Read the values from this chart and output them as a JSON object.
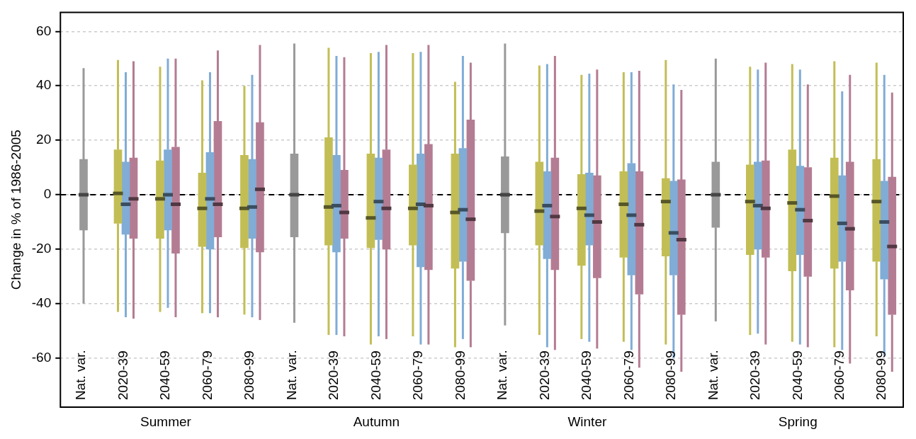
{
  "chart_data": {
    "type": "box",
    "ylabel": "Change in % of 1986-2005",
    "categories": [
      "Nat. var.",
      "2020-39",
      "2040-59",
      "2060-79",
      "2080-99",
      "Nat. var.",
      "2020-39",
      "2040-59",
      "2060-79",
      "2080-99",
      "Nat. var.",
      "2020-39",
      "2040-59",
      "2060-79",
      "2080-99",
      "Nat. var.",
      "2020-39",
      "2040-59",
      "2060-79",
      "2080-99"
    ],
    "annotations": [
      "Summer",
      "Autumn",
      "Winter",
      "Spring"
    ],
    "ylim": [
      -78,
      67
    ],
    "yticks": [
      -60,
      -40,
      -20,
      0,
      20,
      40,
      60
    ],
    "grid": "y",
    "ref_lines": [
      {
        "axis": "y",
        "value": 0,
        "color": "#000000",
        "line_style": "dashed"
      }
    ],
    "series": [
      {
        "color": "#999999",
        "boxes": [
          {
            "low": -40,
            "q1": -13,
            "median": 0,
            "q3": 13,
            "high": 46.5
          },
          null,
          null,
          null,
          null,
          {
            "low": -47,
            "q1": -15.5,
            "median": 0,
            "q3": 15,
            "high": 55.5
          },
          null,
          null,
          null,
          null,
          {
            "low": -48,
            "q1": -14,
            "median": 0,
            "q3": 14,
            "high": 55.5
          },
          null,
          null,
          null,
          null,
          {
            "low": -46.5,
            "q1": -12,
            "median": 0,
            "q3": 12,
            "high": 50
          },
          null,
          null,
          null,
          null
        ]
      },
      {
        "color": "#c2be55",
        "boxes": [
          null,
          {
            "low": -43,
            "q1": -10.5,
            "median": 0.5,
            "q3": 16.5,
            "high": 49.5
          },
          {
            "low": -43,
            "q1": -16,
            "median": -1.5,
            "q3": 12.5,
            "high": 47
          },
          {
            "low": -43.5,
            "q1": -19,
            "median": -5,
            "q3": 8,
            "high": 42
          },
          {
            "low": -44,
            "q1": -19.5,
            "median": -5,
            "q3": 14.5,
            "high": 40
          },
          null,
          {
            "low": -51.5,
            "q1": -18.5,
            "median": -4.5,
            "q3": 21,
            "high": 54
          },
          {
            "low": -55,
            "q1": -19.5,
            "median": -8.5,
            "q3": 15,
            "high": 52
          },
          {
            "low": -52,
            "q1": -18.5,
            "median": -5,
            "q3": 11,
            "high": 52
          },
          {
            "low": -56,
            "q1": -27,
            "median": -6.5,
            "q3": 15,
            "high": 41.5
          },
          null,
          {
            "low": -51.5,
            "q1": -18.5,
            "median": -6,
            "q3": 12,
            "high": 47.5
          },
          {
            "low": -53,
            "q1": -26,
            "median": -5,
            "q3": 7.5,
            "high": 44
          },
          {
            "low": -54,
            "q1": -23,
            "median": -3.5,
            "q3": 8.5,
            "high": 45
          },
          {
            "low": -55,
            "q1": -22.5,
            "median": -2.5,
            "q3": 6,
            "high": 49.5
          },
          null,
          {
            "low": -51.5,
            "q1": -22,
            "median": -2.5,
            "q3": 11,
            "high": 47
          },
          {
            "low": -54,
            "q1": -28,
            "median": -3,
            "q3": 16.5,
            "high": 48
          },
          {
            "low": -56,
            "q1": -27,
            "median": -0.5,
            "q3": 13.5,
            "high": 49
          },
          {
            "low": -52,
            "q1": -24.5,
            "median": -2.5,
            "q3": 13,
            "high": 48.5
          }
        ]
      },
      {
        "color": "#80acd6",
        "boxes": [
          null,
          {
            "low": -45,
            "q1": -14.5,
            "median": -3.5,
            "q3": 12,
            "high": 45
          },
          {
            "low": -41.5,
            "q1": -13,
            "median": 0,
            "q3": 16.5,
            "high": 50
          },
          {
            "low": -43.5,
            "q1": -20,
            "median": -1.5,
            "q3": 15.5,
            "high": 45
          },
          {
            "low": -45,
            "q1": -16,
            "median": -4.5,
            "q3": 13,
            "high": 44
          },
          null,
          {
            "low": -51.5,
            "q1": -21,
            "median": -4,
            "q3": 14.5,
            "high": 51
          },
          {
            "low": -52,
            "q1": -16.5,
            "median": -2.5,
            "q3": 13.5,
            "high": 52.5
          },
          {
            "low": -55,
            "q1": -26.5,
            "median": -3.5,
            "q3": 15,
            "high": 52.5
          },
          {
            "low": -53,
            "q1": -24.5,
            "median": -5.5,
            "q3": 17,
            "high": 51
          },
          null,
          {
            "low": -56,
            "q1": -23.5,
            "median": -4,
            "q3": 8.5,
            "high": 48
          },
          {
            "low": -54,
            "q1": -18.5,
            "median": -7.5,
            "q3": 8,
            "high": 44.5
          },
          {
            "low": -57,
            "q1": -29.5,
            "median": -7.5,
            "q3": 11.5,
            "high": 45
          },
          {
            "low": -60,
            "q1": -29.5,
            "median": -14,
            "q3": 5,
            "high": 40.5
          },
          null,
          {
            "low": -51,
            "q1": -20,
            "median": -4,
            "q3": 12,
            "high": 46
          },
          {
            "low": -55,
            "q1": -22,
            "median": -5.5,
            "q3": 10.5,
            "high": 46
          },
          {
            "low": -57,
            "q1": -24.5,
            "median": -10.5,
            "q3": 7,
            "high": 38
          },
          {
            "low": -59,
            "q1": -31,
            "median": -10,
            "q3": 5,
            "high": 44
          }
        ]
      },
      {
        "color": "#b47c93",
        "boxes": [
          null,
          {
            "low": -45.5,
            "q1": -16,
            "median": -1.5,
            "q3": 13.5,
            "high": 49
          },
          {
            "low": -45,
            "q1": -21.5,
            "median": -3.5,
            "q3": 17.5,
            "high": 50
          },
          {
            "low": -45,
            "q1": -15.5,
            "median": -3.5,
            "q3": 27,
            "high": 53
          },
          {
            "low": -46,
            "q1": -21,
            "median": 2,
            "q3": 26.5,
            "high": 55
          },
          null,
          {
            "low": -52,
            "q1": -16,
            "median": -6.5,
            "q3": 9,
            "high": 50.5
          },
          {
            "low": -53,
            "q1": -20,
            "median": -5,
            "q3": 16.5,
            "high": 55
          },
          {
            "low": -55,
            "q1": -27.5,
            "median": -4,
            "q3": 18.5,
            "high": 55
          },
          {
            "low": -56,
            "q1": -31.5,
            "median": -9,
            "q3": 27.5,
            "high": 48.5
          },
          null,
          {
            "low": -57,
            "q1": -27.5,
            "median": -8,
            "q3": 13.5,
            "high": 51
          },
          {
            "low": -56.5,
            "q1": -30.5,
            "median": -10,
            "q3": 7,
            "high": 46
          },
          {
            "low": -63.5,
            "q1": -36.5,
            "median": -11,
            "q3": 8.5,
            "high": 45.5
          },
          {
            "low": -65,
            "q1": -44,
            "median": -16.5,
            "q3": 5.5,
            "high": 38.5
          },
          null,
          {
            "low": -55,
            "q1": -23,
            "median": -5,
            "q3": 12.5,
            "high": 48.5
          },
          {
            "low": -56,
            "q1": -30,
            "median": -9.5,
            "q3": 10,
            "high": 40.5
          },
          {
            "low": -62,
            "q1": -35,
            "median": -12.5,
            "q3": 12,
            "high": 44
          },
          {
            "low": -65,
            "q1": -44,
            "median": -19,
            "q3": 6.5,
            "high": 37.5
          }
        ]
      }
    ]
  }
}
